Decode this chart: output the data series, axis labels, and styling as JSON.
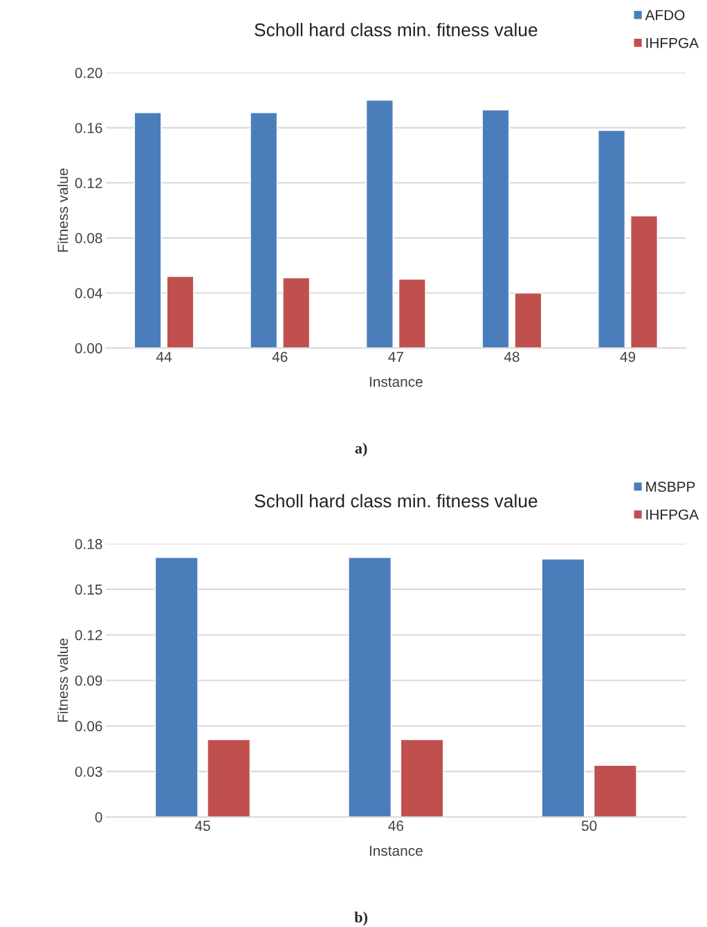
{
  "chart_data": [
    {
      "type": "bar",
      "title": "Scholl hard class min. fitness value",
      "xlabel": "Instance",
      "ylabel": "Fitness value",
      "categories": [
        "44",
        "46",
        "47",
        "48",
        "49"
      ],
      "series": [
        {
          "name": "AFDO",
          "color": "#4a7ebb",
          "values": [
            0.171,
            0.171,
            0.18,
            0.173,
            0.158
          ]
        },
        {
          "name": "IHFPGA",
          "color": "#c0504d",
          "values": [
            0.052,
            0.051,
            0.05,
            0.04,
            0.096
          ]
        }
      ],
      "ylim": [
        0,
        0.2
      ],
      "yticks": [
        {
          "value": 0,
          "label": "0.00"
        },
        0.04,
        0.08,
        0.12,
        0.16,
        {
          "value": 0.2,
          "label": "0.20"
        }
      ],
      "grid": "y",
      "legend": "top right",
      "annotations": [
        "a)"
      ]
    },
    {
      "type": "bar",
      "title": "Scholl hard class min. fitness value",
      "xlabel": "Instance",
      "ylabel": "Fitness value",
      "categories": [
        "45",
        "46",
        "50"
      ],
      "series": [
        {
          "name": "MSBPP",
          "color": "#4a7ebb",
          "values": [
            0.171,
            0.171,
            0.17
          ]
        },
        {
          "name": "IHFPGA",
          "color": "#c0504d",
          "values": [
            0.051,
            0.051,
            0.034
          ]
        }
      ],
      "ylim": [
        0,
        0.18
      ],
      "yticks": [
        0,
        0.03,
        0.06,
        0.09,
        0.12,
        0.15,
        0.18
      ],
      "grid": "y",
      "legend": "top right",
      "annotations": [
        "b)"
      ]
    }
  ]
}
